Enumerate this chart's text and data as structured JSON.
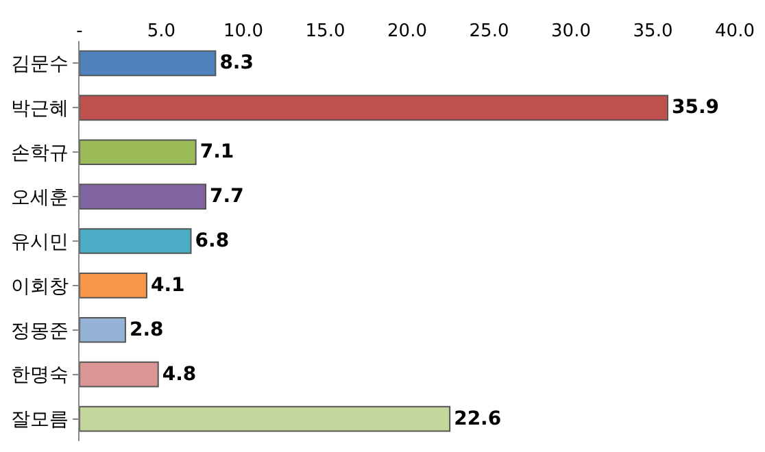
{
  "chart_data": {
    "type": "bar",
    "orientation": "horizontal",
    "categories": [
      "김문수",
      "박근혜",
      "손학규",
      "오세훈",
      "유시민",
      "이회창",
      "정몽준",
      "한명숙",
      "잘모름"
    ],
    "values": [
      8.3,
      35.9,
      7.1,
      7.7,
      6.8,
      4.1,
      2.8,
      4.8,
      22.6
    ],
    "colors": [
      "#4f81bd",
      "#c0504d",
      "#9bbb59",
      "#8064a2",
      "#4bacc6",
      "#f79646",
      "#95b3d7",
      "#d99694",
      "#c3d69b"
    ],
    "xlim": [
      0,
      40
    ],
    "xticks": [
      {
        "value": 0,
        "label": "-"
      },
      {
        "value": 5,
        "label": "5.0"
      },
      {
        "value": 10,
        "label": "10.0"
      },
      {
        "value": 15,
        "label": "15.0"
      },
      {
        "value": 20,
        "label": "20.0"
      },
      {
        "value": 25,
        "label": "25.0"
      },
      {
        "value": 30,
        "label": "30.0"
      },
      {
        "value": 35,
        "label": "35.0"
      },
      {
        "value": 40,
        "label": "40.0"
      }
    ],
    "data_labels": true,
    "legend": false
  }
}
